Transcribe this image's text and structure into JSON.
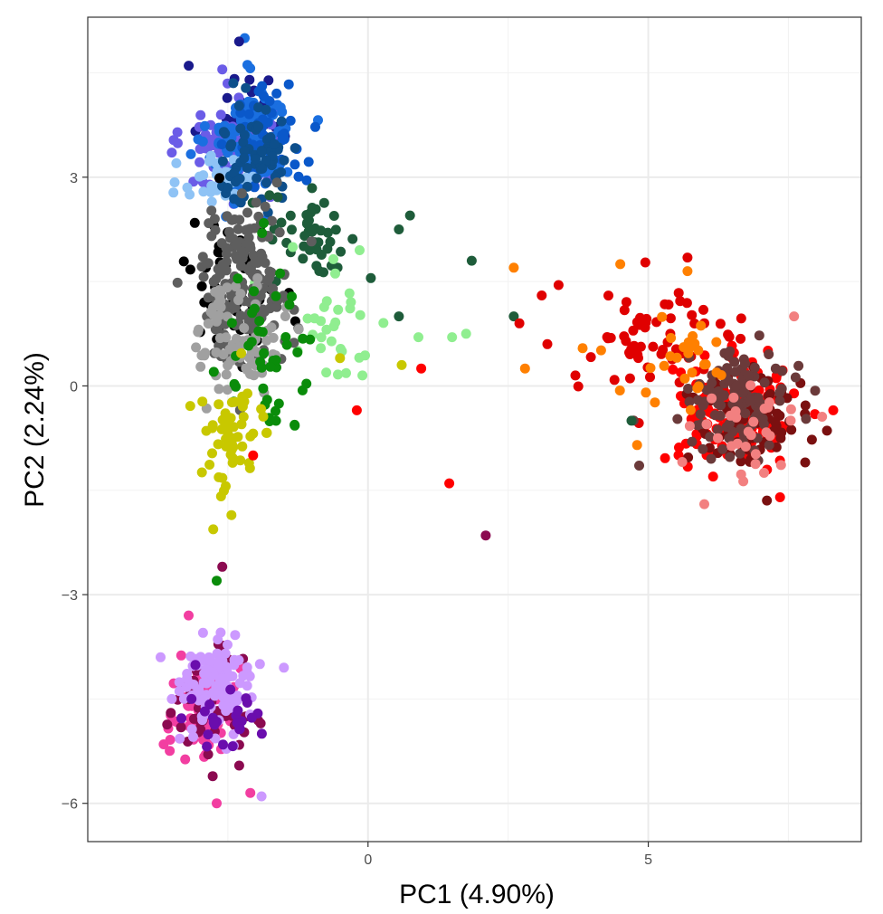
{
  "chart_data": {
    "type": "scatter",
    "title": "",
    "xlabel": "PC1 (4.90%)",
    "ylabel": "PC2 (2.24%)",
    "xlim": [
      -5.0,
      8.8
    ],
    "ylim": [
      -6.55,
      5.3
    ],
    "x_ticks": [
      0,
      5
    ],
    "y_ticks": [
      -6,
      -3,
      0,
      3
    ],
    "x_tick_labels": [
      "0",
      "5"
    ],
    "y_tick_labels": [
      "−6",
      "−3",
      "0",
      "3"
    ],
    "grid": true,
    "legend": "none",
    "point_groups": [
      {
        "color": "#1a1a8c",
        "count": 40,
        "center": [
          -2.2,
          3.8
        ],
        "spread": [
          0.55,
          0.55
        ]
      },
      {
        "color": "#6b5ce7",
        "count": 90,
        "center": [
          -2.5,
          3.4
        ],
        "spread": [
          0.55,
          0.5
        ]
      },
      {
        "color": "#1a6fe0",
        "count": 110,
        "center": [
          -2.1,
          3.5
        ],
        "spread": [
          0.5,
          0.55
        ]
      },
      {
        "color": "#0a58ca",
        "count": 50,
        "center": [
          -1.8,
          3.6
        ],
        "spread": [
          0.45,
          0.5
        ]
      },
      {
        "color": "#8fc3f5",
        "count": 40,
        "center": [
          -2.6,
          3.0
        ],
        "spread": [
          0.45,
          0.35
        ]
      },
      {
        "color": "#0d4f8b",
        "count": 70,
        "center": [
          -2.0,
          3.3
        ],
        "spread": [
          0.5,
          0.5
        ]
      },
      {
        "color": "#1e5c3a",
        "count": 45,
        "center": [
          -1.0,
          2.1
        ],
        "spread": [
          0.55,
          0.45
        ]
      },
      {
        "color": "#90ee90",
        "count": 30,
        "center": [
          -0.6,
          1.0
        ],
        "spread": [
          0.7,
          0.6
        ]
      },
      {
        "color": "#000000",
        "count": 60,
        "center": [
          -2.4,
          1.4
        ],
        "spread": [
          0.5,
          0.7
        ]
      },
      {
        "color": "#5e5e5e",
        "count": 170,
        "center": [
          -2.2,
          1.5
        ],
        "spread": [
          0.55,
          0.75
        ]
      },
      {
        "color": "#a0a0a0",
        "count": 80,
        "center": [
          -2.3,
          0.7
        ],
        "spread": [
          0.5,
          0.55
        ]
      },
      {
        "color": "#0a8c0a",
        "count": 45,
        "center": [
          -1.8,
          0.6
        ],
        "spread": [
          0.55,
          0.9
        ]
      },
      {
        "color": "#c8c800",
        "count": 55,
        "center": [
          -2.4,
          -0.8
        ],
        "spread": [
          0.5,
          0.6
        ]
      },
      {
        "color": "#f23ea1",
        "count": 80,
        "center": [
          -2.9,
          -4.7
        ],
        "spread": [
          0.45,
          0.45
        ]
      },
      {
        "color": "#8b0a50",
        "count": 55,
        "center": [
          -2.9,
          -4.6
        ],
        "spread": [
          0.45,
          0.5
        ]
      },
      {
        "color": "#cc99ff",
        "count": 110,
        "center": [
          -2.7,
          -4.3
        ],
        "spread": [
          0.4,
          0.45
        ]
      },
      {
        "color": "#6a0dad",
        "count": 25,
        "center": [
          -2.6,
          -4.7
        ],
        "spread": [
          0.45,
          0.45
        ]
      },
      {
        "color": "#f0f000",
        "count": 0,
        "center": [
          0,
          0
        ],
        "spread": [
          0,
          0
        ]
      },
      {
        "color": "#ff0000",
        "count": 150,
        "center": [
          6.6,
          -0.4
        ],
        "spread": [
          0.7,
          0.5
        ]
      },
      {
        "color": "#e00000",
        "count": 60,
        "center": [
          5.2,
          0.6
        ],
        "spread": [
          1.0,
          0.5
        ]
      },
      {
        "color": "#7a1010",
        "count": 70,
        "center": [
          6.8,
          -0.5
        ],
        "spread": [
          0.75,
          0.5
        ]
      },
      {
        "color": "#6b3a3a",
        "count": 110,
        "center": [
          6.6,
          -0.2
        ],
        "spread": [
          0.6,
          0.45
        ]
      },
      {
        "color": "#ff8000",
        "count": 30,
        "center": [
          5.6,
          0.3
        ],
        "spread": [
          0.9,
          0.5
        ]
      },
      {
        "color": "#f28080",
        "count": 30,
        "center": [
          6.8,
          -0.6
        ],
        "spread": [
          0.7,
          0.5
        ]
      }
    ],
    "outliers": [
      {
        "x": -2.2,
        "y": 5.0,
        "color": "#1a6fe0"
      },
      {
        "x": -2.3,
        "y": 4.95,
        "color": "#1a1a8c"
      },
      {
        "x": -2.6,
        "y": 4.55,
        "color": "#6b5ce7"
      },
      {
        "x": 0.05,
        "y": 1.55,
        "color": "#1e5c3a"
      },
      {
        "x": 0.55,
        "y": 2.25,
        "color": "#1e5c3a"
      },
      {
        "x": 0.75,
        "y": 2.45,
        "color": "#1e5c3a"
      },
      {
        "x": 1.85,
        "y": 1.8,
        "color": "#1e5c3a"
      },
      {
        "x": 0.55,
        "y": 1.0,
        "color": "#1e5c3a"
      },
      {
        "x": 2.6,
        "y": 1.0,
        "color": "#1e5c3a"
      },
      {
        "x": 4.7,
        "y": -0.5,
        "color": "#1e5c3a"
      },
      {
        "x": 0.9,
        "y": 0.7,
        "color": "#90ee90"
      },
      {
        "x": 1.5,
        "y": 0.7,
        "color": "#90ee90"
      },
      {
        "x": 1.75,
        "y": 0.75,
        "color": "#90ee90"
      },
      {
        "x": -0.15,
        "y": 1.95,
        "color": "#90ee90"
      },
      {
        "x": -0.1,
        "y": 0.15,
        "color": "#90ee90"
      },
      {
        "x": 0.6,
        "y": 0.3,
        "color": "#c8c800"
      },
      {
        "x": -0.5,
        "y": 0.4,
        "color": "#c8c800"
      },
      {
        "x": 0.95,
        "y": 0.25,
        "color": "#ff0000"
      },
      {
        "x": -0.2,
        "y": -0.35,
        "color": "#ff0000"
      },
      {
        "x": 1.45,
        "y": -1.4,
        "color": "#ff0000"
      },
      {
        "x": -2.05,
        "y": -1.0,
        "color": "#ff0000"
      },
      {
        "x": 2.1,
        "y": -2.15,
        "color": "#8b0a50"
      },
      {
        "x": -2.6,
        "y": -2.6,
        "color": "#8b0a50"
      },
      {
        "x": -2.7,
        "y": -2.8,
        "color": "#0a8c0a"
      },
      {
        "x": 2.6,
        "y": 1.7,
        "color": "#ff8000"
      },
      {
        "x": 2.8,
        "y": 0.25,
        "color": "#ff8000"
      },
      {
        "x": 4.5,
        "y": 1.75,
        "color": "#ff8000"
      },
      {
        "x": 5.7,
        "y": 1.65,
        "color": "#ff8000"
      },
      {
        "x": 4.8,
        "y": -0.85,
        "color": "#ff8000"
      },
      {
        "x": 2.7,
        "y": 0.9,
        "color": "#e00000"
      },
      {
        "x": 3.1,
        "y": 1.3,
        "color": "#e00000"
      },
      {
        "x": 3.4,
        "y": 1.45,
        "color": "#e00000"
      },
      {
        "x": 3.2,
        "y": 0.6,
        "color": "#e00000"
      },
      {
        "x": 3.7,
        "y": 0.15,
        "color": "#e00000"
      },
      {
        "x": -3.7,
        "y": -3.9,
        "color": "#cc99ff"
      },
      {
        "x": -3.5,
        "y": -4.5,
        "color": "#cc99ff"
      },
      {
        "x": -3.2,
        "y": -3.3,
        "color": "#f23ea1"
      },
      {
        "x": -1.5,
        "y": -4.05,
        "color": "#cc99ff"
      },
      {
        "x": -1.9,
        "y": -5.9,
        "color": "#cc99ff"
      },
      {
        "x": -2.7,
        "y": -6.0,
        "color": "#f23ea1"
      },
      {
        "x": -2.1,
        "y": -5.85,
        "color": "#f23ea1"
      },
      {
        "x": 6.0,
        "y": -1.7,
        "color": "#f28080"
      },
      {
        "x": 7.6,
        "y": 1.0,
        "color": "#f28080"
      },
      {
        "x": 8.3,
        "y": -0.35,
        "color": "#ff0000"
      },
      {
        "x": 7.8,
        "y": -1.1,
        "color": "#7a1010"
      },
      {
        "x": 7.35,
        "y": -1.6,
        "color": "#ff0000"
      }
    ]
  }
}
